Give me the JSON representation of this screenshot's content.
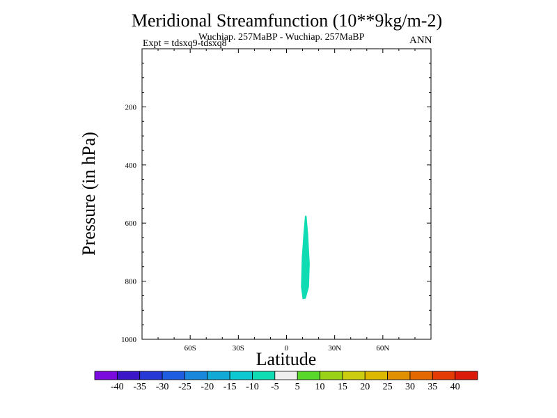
{
  "chart_data": {
    "type": "contour",
    "title": "Meridional Streamfunction (10**9kg/m-2)",
    "subtitle": "Wuchiap. 257MaBP - Wuchiap. 257MaBP",
    "experiment": "Expt = tdsxq9-tdsxq8",
    "season": "ANN",
    "xlabel": "Latitude",
    "ylabel": "Pressure (in hPa)",
    "xlim": [
      -90,
      90
    ],
    "ylim": [
      1000,
      0
    ],
    "x_ticks": [
      {
        "value": -60,
        "label": "60S"
      },
      {
        "value": -30,
        "label": "30S"
      },
      {
        "value": 0,
        "label": "0"
      },
      {
        "value": 30,
        "label": "30N"
      },
      {
        "value": 60,
        "label": "60N"
      }
    ],
    "y_ticks": [
      {
        "value": 200,
        "label": "200"
      },
      {
        "value": 400,
        "label": "400"
      },
      {
        "value": 600,
        "label": "600"
      },
      {
        "value": 800,
        "label": "800"
      },
      {
        "value": 1000,
        "label": "1000"
      }
    ],
    "contour_levels": [
      -40,
      -35,
      -30,
      -25,
      -20,
      -15,
      -10,
      -5,
      5,
      10,
      15,
      20,
      25,
      30,
      35,
      40
    ],
    "colorbar_colors": [
      "#7a0ade",
      "#3a16c8",
      "#2638d6",
      "#1e5ce0",
      "#1988dc",
      "#12a9d6",
      "#0cc8d0",
      "#10dcb4",
      "#eeeeee",
      "#58d82a",
      "#9ad218",
      "#cccc10",
      "#dcb800",
      "#e09000",
      "#e46800",
      "#e43a04",
      "#dc1a0a"
    ],
    "filled_regions": [
      {
        "range": [
          -10,
          -5
        ],
        "color": "#10dcb4",
        "outline": [
          [
            12.5,
            575
          ],
          [
            13.5,
            640
          ],
          [
            14.5,
            740
          ],
          [
            14.0,
            820
          ],
          [
            12.0,
            860
          ],
          [
            10.0,
            862
          ],
          [
            9.0,
            820
          ],
          [
            9.5,
            720
          ],
          [
            10.5,
            640
          ],
          [
            11.5,
            575
          ]
        ]
      }
    ]
  }
}
